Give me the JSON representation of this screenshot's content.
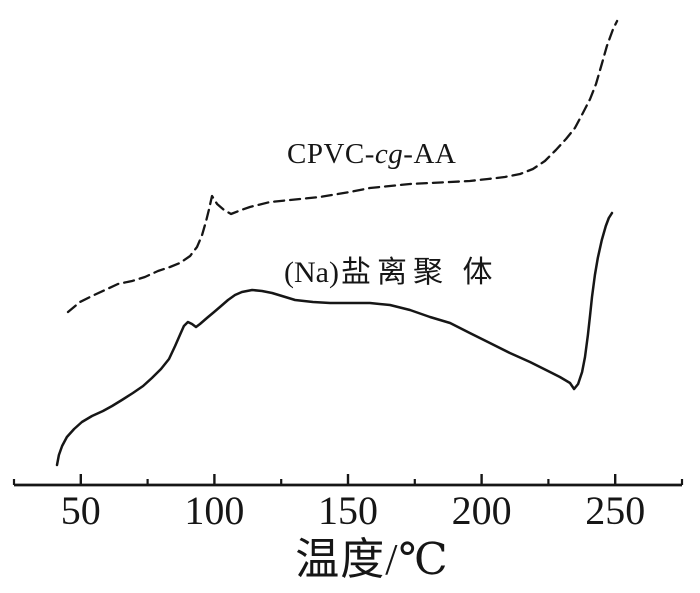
{
  "figure": {
    "background": "#ffffff",
    "ink_color": "#161616"
  },
  "labels": {
    "curve1": {
      "prefix": "CPVC-",
      "italic": "cg",
      "suffix": "-AA"
    },
    "curve2": {
      "prefix": "(Na)",
      "cjk": "盐离聚 体"
    },
    "x_axis_title": "温度/℃"
  },
  "chart_data": {
    "type": "line",
    "title": "",
    "xlabel": "温度/℃",
    "ylabel": "",
    "x_range": [
      25,
      275
    ],
    "x_major_ticks": [
      50,
      100,
      150,
      200,
      250
    ],
    "x_minor_ticks": [
      25,
      75,
      125,
      175,
      225,
      275
    ],
    "grid": false,
    "y_axis_shown": false,
    "y_units": "arbitrary units (unlabeled vertical axis)",
    "legend_position": "inline-labels",
    "series": [
      {
        "name": "CPVC-cg-AA",
        "style": "dashed",
        "points": [
          [
            45.2,
            1.88
          ],
          [
            49.7,
            1.98
          ],
          [
            54.2,
            2.04
          ],
          [
            59.1,
            2.1
          ],
          [
            63.9,
            2.16
          ],
          [
            69.2,
            2.19
          ],
          [
            74.0,
            2.23
          ],
          [
            78.9,
            2.29
          ],
          [
            83.4,
            2.33
          ],
          [
            87.1,
            2.37
          ],
          [
            90.9,
            2.44
          ],
          [
            93.5,
            2.53
          ],
          [
            95.4,
            2.65
          ],
          [
            96.9,
            2.79
          ],
          [
            98.0,
            2.91
          ],
          [
            99.1,
            3.04
          ],
          [
            101.0,
            2.96
          ],
          [
            103.6,
            2.9
          ],
          [
            106.2,
            2.86
          ],
          [
            110.0,
            2.9
          ],
          [
            113.3,
            2.93
          ],
          [
            120.8,
            2.98
          ],
          [
            128.3,
            3.0
          ],
          [
            139.5,
            3.03
          ],
          [
            150.7,
            3.08
          ],
          [
            158.2,
            3.12
          ],
          [
            165.7,
            3.14
          ],
          [
            173.2,
            3.16
          ],
          [
            180.7,
            3.17
          ],
          [
            188.2,
            3.18
          ],
          [
            195.6,
            3.19
          ],
          [
            202.4,
            3.21
          ],
          [
            208.7,
            3.23
          ],
          [
            214.4,
            3.26
          ],
          [
            219.2,
            3.31
          ],
          [
            223.7,
            3.39
          ],
          [
            227.8,
            3.5
          ],
          [
            231.6,
            3.61
          ],
          [
            234.9,
            3.72
          ],
          [
            237.9,
            3.87
          ],
          [
            240.6,
            4.01
          ],
          [
            242.8,
            4.16
          ],
          [
            245.0,
            4.36
          ],
          [
            246.9,
            4.54
          ],
          [
            249.2,
            4.71
          ],
          [
            250.7,
            4.79
          ]
        ]
      },
      {
        "name": "(Na)盐离聚体",
        "style": "solid",
        "points": [
          [
            41.1,
            0.35
          ],
          [
            41.8,
            0.45
          ],
          [
            43.0,
            0.54
          ],
          [
            44.8,
            0.63
          ],
          [
            47.5,
            0.71
          ],
          [
            50.4,
            0.78
          ],
          [
            54.2,
            0.84
          ],
          [
            58.3,
            0.89
          ],
          [
            61.7,
            0.94
          ],
          [
            65.4,
            1.0
          ],
          [
            69.5,
            1.07
          ],
          [
            73.3,
            1.14
          ],
          [
            76.6,
            1.22
          ],
          [
            80.0,
            1.31
          ],
          [
            83.0,
            1.41
          ],
          [
            85.3,
            1.54
          ],
          [
            87.1,
            1.65
          ],
          [
            88.6,
            1.74
          ],
          [
            90.1,
            1.78
          ],
          [
            91.6,
            1.76
          ],
          [
            93.1,
            1.73
          ],
          [
            94.6,
            1.76
          ],
          [
            97.2,
            1.82
          ],
          [
            99.9,
            1.88
          ],
          [
            102.5,
            1.94
          ],
          [
            105.1,
            2.0
          ],
          [
            107.7,
            2.05
          ],
          [
            110.3,
            2.08
          ],
          [
            114.1,
            2.1
          ],
          [
            117.8,
            2.09
          ],
          [
            121.6,
            2.07
          ],
          [
            125.3,
            2.04
          ],
          [
            130.2,
            2.0
          ],
          [
            136.9,
            1.98
          ],
          [
            143.3,
            1.97
          ],
          [
            150.7,
            1.97
          ],
          [
            158.2,
            1.97
          ],
          [
            165.7,
            1.95
          ],
          [
            173.2,
            1.9
          ],
          [
            180.7,
            1.83
          ],
          [
            188.2,
            1.77
          ],
          [
            195.6,
            1.67
          ],
          [
            203.1,
            1.57
          ],
          [
            210.6,
            1.47
          ],
          [
            218.1,
            1.38
          ],
          [
            225.6,
            1.28
          ],
          [
            229.3,
            1.23
          ],
          [
            233.1,
            1.17
          ],
          [
            234.6,
            1.11
          ],
          [
            236.1,
            1.16
          ],
          [
            237.6,
            1.28
          ],
          [
            238.7,
            1.43
          ],
          [
            239.8,
            1.65
          ],
          [
            240.6,
            1.85
          ],
          [
            241.3,
            2.03
          ],
          [
            242.4,
            2.25
          ],
          [
            243.5,
            2.42
          ],
          [
            245.0,
            2.6
          ],
          [
            246.5,
            2.74
          ],
          [
            247.6,
            2.82
          ],
          [
            248.8,
            2.87
          ]
        ]
      }
    ]
  }
}
